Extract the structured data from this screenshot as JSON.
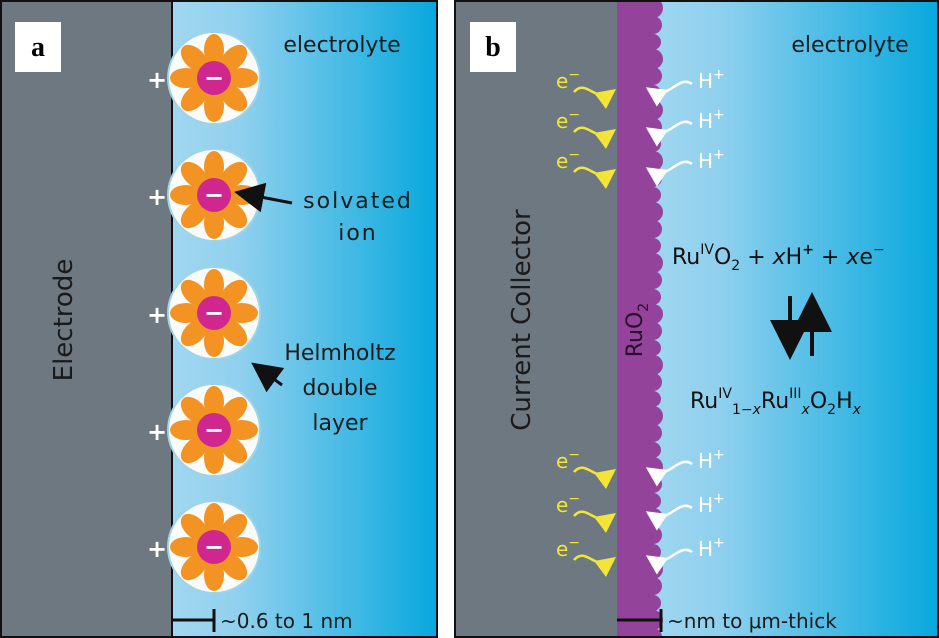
{
  "panel_a": {
    "label": "a",
    "electrolyte": "electrolyte",
    "electrode": "Electrode",
    "electrode_charges": [
      "+",
      "+",
      "+",
      "+",
      "+"
    ],
    "ion_charges": [
      "−",
      "−",
      "−",
      "−",
      "−"
    ],
    "solvated_ion": [
      "solvated",
      "ion"
    ],
    "helmholtz": [
      "Helmholtz",
      "double",
      "layer"
    ],
    "scale": "~0.6 to 1 nm"
  },
  "panel_b": {
    "label": "b",
    "electrolyte": "electrolyte",
    "collector": "Current Collector",
    "ruo2": [
      "RuO",
      "2"
    ],
    "electrons": [
      [
        "e",
        "−"
      ],
      [
        "e",
        "−"
      ],
      [
        "e",
        "−"
      ],
      [
        "e",
        "−"
      ],
      [
        "e",
        "−"
      ],
      [
        "e",
        "−"
      ]
    ],
    "protons": [
      [
        "H",
        "+"
      ],
      [
        "H",
        "+"
      ],
      [
        "H",
        "+"
      ],
      [
        "H",
        "+"
      ],
      [
        "H",
        "+"
      ],
      [
        "H",
        "+"
      ]
    ],
    "forward": [
      "Ru",
      "IV",
      "O",
      "2",
      " + ",
      "x",
      "H",
      "+",
      " + ",
      "x",
      "e",
      "−"
    ],
    "product": [
      "Ru",
      "IV",
      "1−",
      "x",
      "Ru",
      "III",
      "x",
      "O",
      "2",
      "H",
      "x"
    ],
    "scale": "~nm to μm-thick"
  }
}
